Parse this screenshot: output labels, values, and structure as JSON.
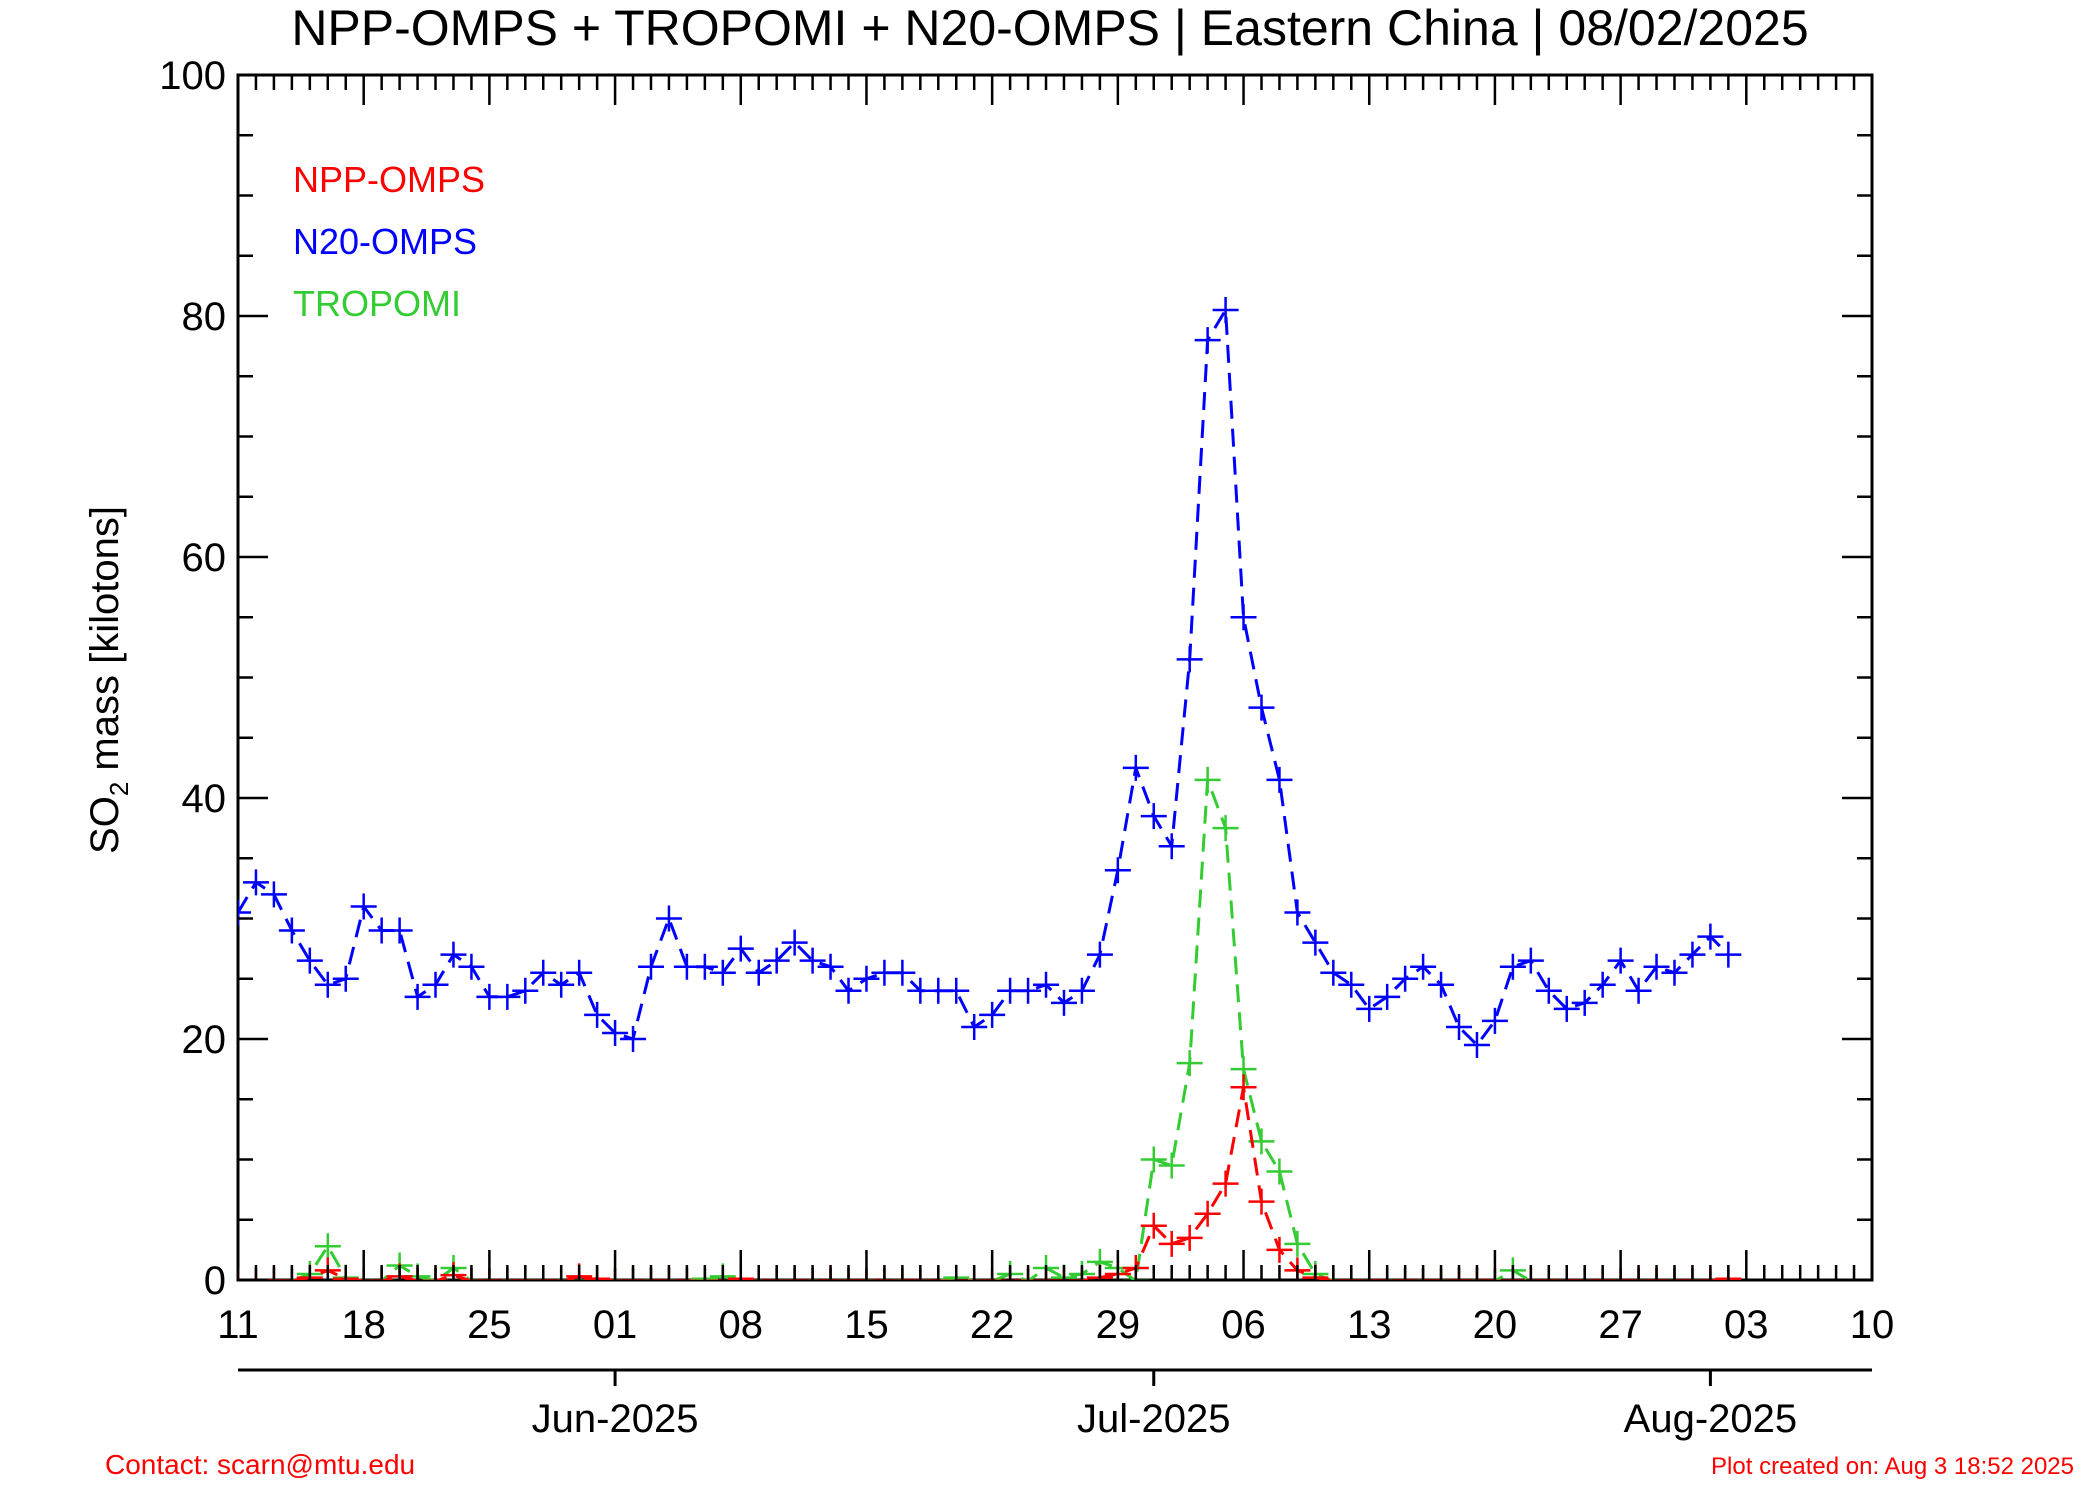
{
  "chart_data": {
    "type": "line",
    "title": "NPP-OMPS + TROPOMI + N20-OMPS | Eastern China | 08/02/2025",
    "ylabel_main": "SO",
    "ylabel_sub": "2",
    "ylabel_rest": " mass [kilotons]",
    "ylim": [
      0,
      100
    ],
    "y_ticks": [
      0,
      20,
      40,
      60,
      80,
      100
    ],
    "x_range": [
      "2025-05-11",
      "2025-08-10"
    ],
    "x_tick_dates": [
      "2025-05-11",
      "2025-05-18",
      "2025-05-25",
      "2025-06-01",
      "2025-06-08",
      "2025-06-15",
      "2025-06-22",
      "2025-06-29",
      "2025-07-06",
      "2025-07-13",
      "2025-07-20",
      "2025-07-27",
      "2025-08-03",
      "2025-08-10"
    ],
    "x_tick_labels": [
      "11",
      "18",
      "25",
      "01",
      "08",
      "15",
      "22",
      "29",
      "06",
      "13",
      "20",
      "27",
      "03",
      "10"
    ],
    "month_labels": [
      {
        "date": "2025-06-01",
        "label": "Jun-2025"
      },
      {
        "date": "2025-07-01",
        "label": "Jul-2025"
      },
      {
        "date": "2025-08-01",
        "label": "Aug-2025"
      }
    ],
    "legend_placement": "top-left",
    "series": [
      {
        "name": "NPP-OMPS",
        "color": "#ff0000",
        "data": [
          [
            "2025-05-11",
            0
          ],
          [
            "2025-05-12",
            0
          ],
          [
            "2025-05-13",
            0
          ],
          [
            "2025-05-14",
            0
          ],
          [
            "2025-05-15",
            0.2
          ],
          [
            "2025-05-16",
            0.8
          ],
          [
            "2025-05-17",
            0.1
          ],
          [
            "2025-05-18",
            0
          ],
          [
            "2025-05-19",
            0
          ],
          [
            "2025-05-20",
            0.3
          ],
          [
            "2025-05-21",
            0
          ],
          [
            "2025-05-22",
            0
          ],
          [
            "2025-05-23",
            0.4
          ],
          [
            "2025-05-24",
            0
          ],
          [
            "2025-05-25",
            0
          ],
          [
            "2025-05-26",
            0
          ],
          [
            "2025-05-27",
            0
          ],
          [
            "2025-05-28",
            0
          ],
          [
            "2025-05-29",
            0
          ],
          [
            "2025-05-30",
            0.3
          ],
          [
            "2025-05-31",
            0.1
          ],
          [
            "2025-06-01",
            0
          ],
          [
            "2025-06-02",
            0
          ],
          [
            "2025-06-03",
            0
          ],
          [
            "2025-06-04",
            0
          ],
          [
            "2025-06-05",
            0
          ],
          [
            "2025-06-06",
            0
          ],
          [
            "2025-06-07",
            0
          ],
          [
            "2025-06-08",
            0.1
          ],
          [
            "2025-06-09",
            0
          ],
          [
            "2025-06-10",
            0
          ],
          [
            "2025-06-11",
            0
          ],
          [
            "2025-06-12",
            0
          ],
          [
            "2025-06-13",
            0
          ],
          [
            "2025-06-14",
            0
          ],
          [
            "2025-06-15",
            0
          ],
          [
            "2025-06-16",
            0
          ],
          [
            "2025-06-17",
            0
          ],
          [
            "2025-06-18",
            0
          ],
          [
            "2025-06-19",
            0
          ],
          [
            "2025-06-20",
            0
          ],
          [
            "2025-06-21",
            0
          ],
          [
            "2025-06-22",
            0
          ],
          [
            "2025-06-23",
            0
          ],
          [
            "2025-06-24",
            0
          ],
          [
            "2025-06-25",
            0
          ],
          [
            "2025-06-26",
            0
          ],
          [
            "2025-06-27",
            0
          ],
          [
            "2025-06-28",
            0.2
          ],
          [
            "2025-06-29",
            0.5
          ],
          [
            "2025-06-30",
            1.0
          ],
          [
            "2025-07-01",
            4.5
          ],
          [
            "2025-07-02",
            3.0
          ],
          [
            "2025-07-03",
            3.5
          ],
          [
            "2025-07-04",
            5.5
          ],
          [
            "2025-07-05",
            8.0
          ],
          [
            "2025-07-06",
            16.0
          ],
          [
            "2025-07-07",
            6.5
          ],
          [
            "2025-07-08",
            2.5
          ],
          [
            "2025-07-09",
            0.8
          ],
          [
            "2025-07-10",
            0.2
          ],
          [
            "2025-07-11",
            0
          ],
          [
            "2025-07-12",
            0
          ],
          [
            "2025-07-13",
            0
          ],
          [
            "2025-07-14",
            0
          ],
          [
            "2025-07-15",
            0
          ],
          [
            "2025-07-16",
            0
          ],
          [
            "2025-07-17",
            0
          ],
          [
            "2025-07-18",
            0
          ],
          [
            "2025-07-19",
            0
          ],
          [
            "2025-07-20",
            0
          ],
          [
            "2025-07-21",
            0
          ],
          [
            "2025-07-22",
            0
          ],
          [
            "2025-07-23",
            0
          ],
          [
            "2025-07-24",
            0
          ],
          [
            "2025-07-25",
            0
          ],
          [
            "2025-07-26",
            0
          ],
          [
            "2025-07-27",
            0
          ],
          [
            "2025-07-28",
            0
          ],
          [
            "2025-07-29",
            0
          ],
          [
            "2025-07-30",
            0
          ],
          [
            "2025-07-31",
            0
          ],
          [
            "2025-08-01",
            0
          ],
          [
            "2025-08-02",
            0.1
          ]
        ]
      },
      {
        "name": "N20-OMPS",
        "color": "#0000ff",
        "data": [
          [
            "2025-05-11",
            30.5
          ],
          [
            "2025-05-12",
            33.0
          ],
          [
            "2025-05-13",
            32.0
          ],
          [
            "2025-05-14",
            29.0
          ],
          [
            "2025-05-15",
            26.5
          ],
          [
            "2025-05-16",
            24.5
          ],
          [
            "2025-05-17",
            25.0
          ],
          [
            "2025-05-18",
            31.0
          ],
          [
            "2025-05-19",
            29.0
          ],
          [
            "2025-05-20",
            29.0
          ],
          [
            "2025-05-21",
            23.5
          ],
          [
            "2025-05-22",
            24.5
          ],
          [
            "2025-05-23",
            27.0
          ],
          [
            "2025-05-24",
            26.0
          ],
          [
            "2025-05-25",
            23.5
          ],
          [
            "2025-05-26",
            23.5
          ],
          [
            "2025-05-27",
            24.0
          ],
          [
            "2025-05-28",
            25.5
          ],
          [
            "2025-05-29",
            24.5
          ],
          [
            "2025-05-30",
            25.5
          ],
          [
            "2025-05-31",
            22.0
          ],
          [
            "2025-06-01",
            20.5
          ],
          [
            "2025-06-02",
            20.0
          ],
          [
            "2025-06-03",
            26.0
          ],
          [
            "2025-06-04",
            30.0
          ],
          [
            "2025-06-05",
            26.0
          ],
          [
            "2025-06-06",
            26.0
          ],
          [
            "2025-06-07",
            25.5
          ],
          [
            "2025-06-08",
            27.5
          ],
          [
            "2025-06-09",
            25.5
          ],
          [
            "2025-06-10",
            26.5
          ],
          [
            "2025-06-11",
            28.0
          ],
          [
            "2025-06-12",
            26.5
          ],
          [
            "2025-06-13",
            26.0
          ],
          [
            "2025-06-14",
            24.0
          ],
          [
            "2025-06-15",
            25.0
          ],
          [
            "2025-06-16",
            25.5
          ],
          [
            "2025-06-17",
            25.5
          ],
          [
            "2025-06-18",
            24.0
          ],
          [
            "2025-06-19",
            24.0
          ],
          [
            "2025-06-20",
            24.0
          ],
          [
            "2025-06-21",
            21.0
          ],
          [
            "2025-06-22",
            22.0
          ],
          [
            "2025-06-23",
            24.0
          ],
          [
            "2025-06-24",
            24.0
          ],
          [
            "2025-06-25",
            24.5
          ],
          [
            "2025-06-26",
            23.0
          ],
          [
            "2025-06-27",
            24.0
          ],
          [
            "2025-06-28",
            27.0
          ],
          [
            "2025-06-29",
            34.0
          ],
          [
            "2025-06-30",
            42.5
          ],
          [
            "2025-07-01",
            38.5
          ],
          [
            "2025-07-02",
            36.0
          ],
          [
            "2025-07-03",
            51.5
          ],
          [
            "2025-07-04",
            78.0
          ],
          [
            "2025-07-05",
            80.5
          ],
          [
            "2025-07-06",
            55.0
          ],
          [
            "2025-07-07",
            47.5
          ],
          [
            "2025-07-08",
            41.5
          ],
          [
            "2025-07-09",
            30.5
          ],
          [
            "2025-07-10",
            28.0
          ],
          [
            "2025-07-11",
            25.5
          ],
          [
            "2025-07-12",
            24.5
          ],
          [
            "2025-07-13",
            22.5
          ],
          [
            "2025-07-14",
            23.5
          ],
          [
            "2025-07-15",
            25.0
          ],
          [
            "2025-07-16",
            26.0
          ],
          [
            "2025-07-17",
            24.5
          ],
          [
            "2025-07-18",
            21.0
          ],
          [
            "2025-07-19",
            19.5
          ],
          [
            "2025-07-20",
            21.5
          ],
          [
            "2025-07-21",
            26.0
          ],
          [
            "2025-07-22",
            26.5
          ],
          [
            "2025-07-23",
            24.0
          ],
          [
            "2025-07-24",
            22.5
          ],
          [
            "2025-07-25",
            23.0
          ],
          [
            "2025-07-26",
            24.5
          ],
          [
            "2025-07-27",
            26.5
          ],
          [
            "2025-07-28",
            24.0
          ],
          [
            "2025-07-29",
            26.0
          ],
          [
            "2025-07-30",
            25.5
          ],
          [
            "2025-07-31",
            27.0
          ],
          [
            "2025-08-01",
            28.5
          ],
          [
            "2025-08-02",
            27.0
          ]
        ]
      },
      {
        "name": "TROPOMI",
        "color": "#33cc33",
        "data": [
          [
            "2025-05-11",
            0
          ],
          [
            "2025-05-12",
            0
          ],
          [
            "2025-05-13",
            0
          ],
          [
            "2025-05-14",
            0
          ],
          [
            "2025-05-15",
            0.5
          ],
          [
            "2025-05-16",
            2.8
          ],
          [
            "2025-05-17",
            0.2
          ],
          [
            "2025-05-18",
            0
          ],
          [
            "2025-05-19",
            0
          ],
          [
            "2025-05-20",
            1.2
          ],
          [
            "2025-05-21",
            0.3
          ],
          [
            "2025-05-22",
            0
          ],
          [
            "2025-05-23",
            1.0
          ],
          [
            "2025-05-24",
            0
          ],
          [
            "2025-05-25",
            0
          ],
          [
            "2025-05-26",
            0
          ],
          [
            "2025-05-27",
            0
          ],
          [
            "2025-05-28",
            0
          ],
          [
            "2025-05-29",
            0
          ],
          [
            "2025-05-30",
            0
          ],
          [
            "2025-05-31",
            0
          ],
          [
            "2025-06-01",
            0
          ],
          [
            "2025-06-02",
            0
          ],
          [
            "2025-06-03",
            0
          ],
          [
            "2025-06-04",
            0
          ],
          [
            "2025-06-05",
            0
          ],
          [
            "2025-06-06",
            0.1
          ],
          [
            "2025-06-07",
            0.3
          ],
          [
            "2025-06-08",
            0
          ],
          [
            "2025-06-09",
            0
          ],
          [
            "2025-06-10",
            0
          ],
          [
            "2025-06-11",
            0
          ],
          [
            "2025-06-12",
            0
          ],
          [
            "2025-06-13",
            0
          ],
          [
            "2025-06-14",
            0
          ],
          [
            "2025-06-15",
            0
          ],
          [
            "2025-06-16",
            0
          ],
          [
            "2025-06-17",
            0
          ],
          [
            "2025-06-18",
            0
          ],
          [
            "2025-06-19",
            0
          ],
          [
            "2025-06-20",
            0.2
          ],
          [
            "2025-06-21",
            0
          ],
          [
            "2025-06-22",
            0
          ],
          [
            "2025-06-23",
            0.5
          ],
          [
            "2025-06-24",
            0
          ],
          [
            "2025-06-25",
            1.0
          ],
          [
            "2025-06-26",
            0.2
          ],
          [
            "2025-06-27",
            0.5
          ],
          [
            "2025-06-28",
            1.5
          ],
          [
            "2025-06-29",
            1.0
          ],
          [
            "2025-06-30",
            0
          ],
          [
            "2025-07-01",
            10.0
          ],
          [
            "2025-07-02",
            9.5
          ],
          [
            "2025-07-03",
            18.0
          ],
          [
            "2025-07-04",
            41.5
          ],
          [
            "2025-07-05",
            37.5
          ],
          [
            "2025-07-06",
            17.5
          ],
          [
            "2025-07-07",
            11.5
          ],
          [
            "2025-07-08",
            9.0
          ],
          [
            "2025-07-09",
            3.0
          ],
          [
            "2025-07-10",
            0.5
          ],
          [
            "2025-07-11",
            0
          ],
          [
            "2025-07-12",
            0
          ],
          [
            "2025-07-13",
            0
          ],
          [
            "2025-07-14",
            0
          ],
          [
            "2025-07-15",
            0
          ],
          [
            "2025-07-16",
            0
          ],
          [
            "2025-07-17",
            0
          ],
          [
            "2025-07-18",
            0
          ],
          [
            "2025-07-19",
            0
          ],
          [
            "2025-07-20",
            0
          ],
          [
            "2025-07-21",
            0.8
          ],
          [
            "2025-07-22",
            0
          ],
          [
            "2025-07-23",
            0
          ],
          [
            "2025-07-24",
            0
          ],
          [
            "2025-07-25",
            0
          ],
          [
            "2025-07-26",
            0
          ],
          [
            "2025-07-27",
            0
          ],
          [
            "2025-07-28",
            0
          ],
          [
            "2025-07-29",
            0
          ],
          [
            "2025-07-30",
            0
          ],
          [
            "2025-07-31",
            0
          ]
        ]
      }
    ]
  },
  "footer": {
    "contact": "Contact: scarn@mtu.edu",
    "created": "Plot created on: Aug  3 18:52 2025"
  }
}
